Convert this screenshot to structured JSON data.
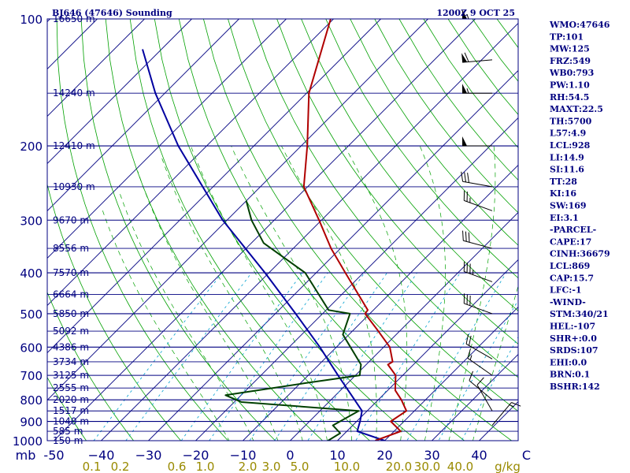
{
  "header": {
    "station": "BJ646 (47646) Sounding",
    "time": "1200Z  9 OCT 25"
  },
  "colors": {
    "frame": "#000080",
    "isobar": "#000080",
    "isotherm": "#000080",
    "dry_adiabat": "#00a000",
    "moist_adiabat": "#00a000",
    "mixing_ratio": "#a08000",
    "temperature": "#b00000",
    "dewpoint": "#004000",
    "parcel": "#0000a0",
    "wind": "#000000",
    "dashed": "#00a0d0"
  },
  "chart_data": {
    "type": "skew-t",
    "title": "BJ646 (47646) Sounding",
    "time": "1200Z  9 OCT 25",
    "pressure_range_mb": [
      1000,
      100
    ],
    "temperature_range_c": [
      -50,
      50
    ],
    "pressure_ticks": [
      {
        "label": "100",
        "p": 100
      },
      {
        "label": "200",
        "p": 200
      },
      {
        "label": "300",
        "p": 300
      },
      {
        "label": "400",
        "p": 400
      },
      {
        "label": "500",
        "p": 500
      },
      {
        "label": "600",
        "p": 600
      },
      {
        "label": "700",
        "p": 700
      },
      {
        "label": "800",
        "p": 800
      },
      {
        "label": "900",
        "p": 900
      },
      {
        "label": "1000",
        "p": 1000
      }
    ],
    "height_labels": [
      {
        "label": "16650 m",
        "p": 100
      },
      {
        "label": "14240 m",
        "p": 150
      },
      {
        "label": "12410 m",
        "p": 200
      },
      {
        "label": "10930 m",
        "p": 250
      },
      {
        "label": "9670 m",
        "p": 300
      },
      {
        "label": "8556 m",
        "p": 350
      },
      {
        "label": "7570 m",
        "p": 400
      },
      {
        "label": "6664 m",
        "p": 450
      },
      {
        "label": "5850 m",
        "p": 500
      },
      {
        "label": "5092 m",
        "p": 550
      },
      {
        "label": "4386 m",
        "p": 600
      },
      {
        "label": "3734 m",
        "p": 650
      },
      {
        "label": "3125 m",
        "p": 700
      },
      {
        "label": "2555 m",
        "p": 750
      },
      {
        "label": "2020 m",
        "p": 800
      },
      {
        "label": "1517 m",
        "p": 850
      },
      {
        "label": "1040 m",
        "p": 900
      },
      {
        "label": "585 m",
        "p": 950
      },
      {
        "label": "150 m",
        "p": 1000
      }
    ],
    "temp_ticks": [
      {
        "label": "mb",
        "t": -56
      },
      {
        "label": "-50",
        "t": -50
      },
      {
        "label": "−40",
        "t": -40
      },
      {
        "label": "−30",
        "t": -30
      },
      {
        "label": "−20",
        "t": -20
      },
      {
        "label": "−10",
        "t": -10
      },
      {
        "label": "0",
        "t": 0
      },
      {
        "label": "10",
        "t": 10
      },
      {
        "label": "20",
        "t": 20
      },
      {
        "label": "30",
        "t": 30
      },
      {
        "label": "40",
        "t": 40
      },
      {
        "label": "C",
        "t": 50
      }
    ],
    "mixing_ratio_labels": [
      {
        "label": "0.1",
        "t": -42
      },
      {
        "label": "0.2",
        "t": -36
      },
      {
        "label": "0.6",
        "t": -24
      },
      {
        "label": "1.0",
        "t": -18
      },
      {
        "label": "2.0",
        "t": -9
      },
      {
        "label": "3.0",
        "t": -4
      },
      {
        "label": "5.0",
        "t": 2
      },
      {
        "label": "10.0",
        "t": 12
      },
      {
        "label": "20.0",
        "t": 23
      },
      {
        "label": "30.0",
        "t": 29
      },
      {
        "label": "40.0",
        "t": 36
      },
      {
        "label": "g/kg",
        "t": 46
      }
    ],
    "temperature_profile": [
      {
        "p": 1000,
        "t": 18.0
      },
      {
        "p": 950,
        "t": 21.4
      },
      {
        "p": 900,
        "t": 17.2
      },
      {
        "p": 850,
        "t": 18.3
      },
      {
        "p": 800,
        "t": 14.9
      },
      {
        "p": 760,
        "t": 11.6
      },
      {
        "p": 700,
        "t": 8.5
      },
      {
        "p": 660,
        "t": 4.6
      },
      {
        "p": 650,
        "t": 5.0
      },
      {
        "p": 600,
        "t": 1.3
      },
      {
        "p": 550,
        "t": -4.5
      },
      {
        "p": 500,
        "t": -11.0
      },
      {
        "p": 490,
        "t": -11.2
      },
      {
        "p": 400,
        "t": -23.8
      },
      {
        "p": 350,
        "t": -32.0
      },
      {
        "p": 300,
        "t": -40.5
      },
      {
        "p": 250,
        "t": -50.8
      },
      {
        "p": 200,
        "t": -58.7
      },
      {
        "p": 150,
        "t": -69.5
      },
      {
        "p": 100,
        "t": -80.6
      }
    ],
    "dewpoint_profile": [
      {
        "p": 1000,
        "t": 8.0
      },
      {
        "p": 960,
        "t": 9.0
      },
      {
        "p": 920,
        "t": 5.8
      },
      {
        "p": 850,
        "t": 8.2
      },
      {
        "p": 810,
        "t": -18.5
      },
      {
        "p": 780,
        "t": -23.3
      },
      {
        "p": 730,
        "t": -8.9
      },
      {
        "p": 700,
        "t": 0.9
      },
      {
        "p": 660,
        "t": -1.1
      },
      {
        "p": 560,
        "t": -11.3
      },
      {
        "p": 500,
        "t": -14.2
      },
      {
        "p": 490,
        "t": -19.5
      },
      {
        "p": 400,
        "t": -32.3
      },
      {
        "p": 340,
        "t": -47.4
      },
      {
        "p": 300,
        "t": -54.8
      },
      {
        "p": 270,
        "t": -60.0
      }
    ],
    "parcel_profile": [
      {
        "p": 1000,
        "t": 20.0
      },
      {
        "p": 950,
        "t": 12.2
      },
      {
        "p": 900,
        "t": 10.7
      },
      {
        "p": 850,
        "t": 8.9
      },
      {
        "p": 800,
        "t": 5.0
      },
      {
        "p": 700,
        "t": -3.7
      },
      {
        "p": 600,
        "t": -13.5
      },
      {
        "p": 500,
        "t": -25.7
      },
      {
        "p": 400,
        "t": -40.8
      },
      {
        "p": 300,
        "t": -60.9
      },
      {
        "p": 200,
        "t": -86.0
      },
      {
        "p": 150,
        "t": -102.0
      },
      {
        "p": 118,
        "t": -114.0
      }
    ],
    "wind_barbs": [
      {
        "p": 100,
        "dir": 270,
        "kt": 55
      },
      {
        "p": 125,
        "dir": 265,
        "kt": 60
      },
      {
        "p": 150,
        "dir": 270,
        "kt": 55
      },
      {
        "p": 200,
        "dir": 270,
        "kt": 50
      },
      {
        "p": 250,
        "dir": 280,
        "kt": 30
      },
      {
        "p": 285,
        "dir": 290,
        "kt": 25
      },
      {
        "p": 350,
        "dir": 285,
        "kt": 30
      },
      {
        "p": 420,
        "dir": 290,
        "kt": 35
      },
      {
        "p": 500,
        "dir": 290,
        "kt": 30
      },
      {
        "p": 640,
        "dir": 300,
        "kt": 20
      },
      {
        "p": 700,
        "dir": 305,
        "kt": 15
      },
      {
        "p": 800,
        "dir": 310,
        "kt": 10
      },
      {
        "p": 850,
        "dir": 330,
        "kt": 10
      },
      {
        "p": 920,
        "dir": 40,
        "kt": 15
      }
    ]
  },
  "indices": [
    "WMO:47646",
    "TP:101",
    "MW:125",
    "FRZ:549",
    "WB0:793",
    "PW:1.10",
    "RH:54.5",
    "MAXT:22.5",
    "TH:5700",
    "L57:4.9",
    "LCL:928",
    "LI:14.9",
    "SI:11.6",
    "TT:28",
    "KI:16",
    "SW:169",
    "EI:3.1",
    "-PARCEL-",
    "CAPE:17",
    "CINH:36679",
    "LCL:869",
    "CAP:15.7",
    "LFC:-1",
    "-WIND-",
    "STM:340/21",
    "HEL:-107",
    "SHR+:0.0",
    "SRDS:107",
    "EHI:0.0",
    "BRN:0.1",
    "BSHR:142"
  ]
}
